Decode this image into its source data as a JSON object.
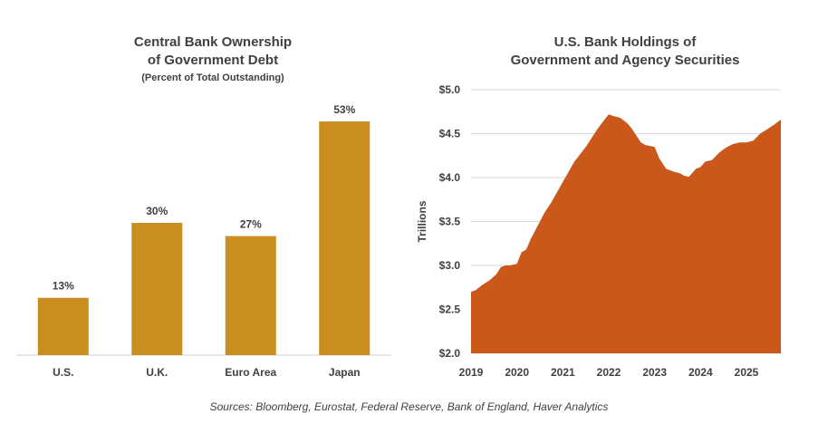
{
  "sources": "Sources: Bloomberg, Eurostat, Federal Reserve, Bank of England, Haver Analytics",
  "chart_data": [
    {
      "type": "bar",
      "title_line1": "Central Bank Ownership",
      "title_line2": "of Government Debt",
      "subtitle": "(Percent of Total Outstanding)",
      "categories": [
        "U.S.",
        "U.K.",
        "Euro Area",
        "Japan"
      ],
      "values": [
        13,
        30,
        27,
        53
      ],
      "data_labels": [
        "13%",
        "30%",
        "27%",
        "53%"
      ],
      "ylim": [
        0,
        60
      ],
      "color": "#C98E1F",
      "grid": false
    },
    {
      "type": "area",
      "title_line1": "U.S. Bank Holdings of",
      "title_line2": "Government and Agency Securities",
      "ylabel": "Trillions",
      "ylim": [
        2.0,
        5.0
      ],
      "yticks": [
        2.0,
        2.5,
        3.0,
        3.5,
        4.0,
        4.5,
        5.0
      ],
      "ytick_labels": [
        "$2.0",
        "$2.5",
        "$3.0",
        "$3.5",
        "$4.0",
        "$4.5",
        "$5.0"
      ],
      "xlim": [
        2019.0,
        2025.75
      ],
      "xticks": [
        2019,
        2020,
        2021,
        2022,
        2023,
        2024,
        2025
      ],
      "xtick_labels": [
        "2019",
        "2020",
        "2021",
        "2022",
        "2023",
        "2024",
        "2025"
      ],
      "color": "#C9581A",
      "grid": true,
      "x": [
        2019.0,
        2019.1,
        2019.25,
        2019.4,
        2019.55,
        2019.65,
        2019.75,
        2019.85,
        2020.0,
        2020.1,
        2020.2,
        2020.3,
        2020.45,
        2020.6,
        2020.75,
        2021.0,
        2021.25,
        2021.5,
        2021.75,
        2021.85,
        2022.0,
        2022.1,
        2022.25,
        2022.4,
        2022.5,
        2022.7,
        2022.8,
        2022.9,
        2023.0,
        2023.1,
        2023.25,
        2023.4,
        2023.55,
        2023.65,
        2023.75,
        2023.9,
        2024.0,
        2024.1,
        2024.25,
        2024.4,
        2024.55,
        2024.7,
        2024.85,
        2025.0,
        2025.15,
        2025.3,
        2025.45,
        2025.6,
        2025.75
      ],
      "y": [
        2.7,
        2.72,
        2.78,
        2.83,
        2.9,
        2.98,
        3.0,
        3.0,
        3.02,
        3.15,
        3.18,
        3.3,
        3.45,
        3.6,
        3.72,
        3.95,
        4.18,
        4.35,
        4.55,
        4.62,
        4.72,
        4.7,
        4.68,
        4.62,
        4.56,
        4.4,
        4.37,
        4.36,
        4.35,
        4.22,
        4.1,
        4.07,
        4.05,
        4.02,
        4.01,
        4.1,
        4.12,
        4.18,
        4.2,
        4.28,
        4.34,
        4.38,
        4.4,
        4.4,
        4.42,
        4.5,
        4.55,
        4.6,
        4.66
      ]
    }
  ]
}
